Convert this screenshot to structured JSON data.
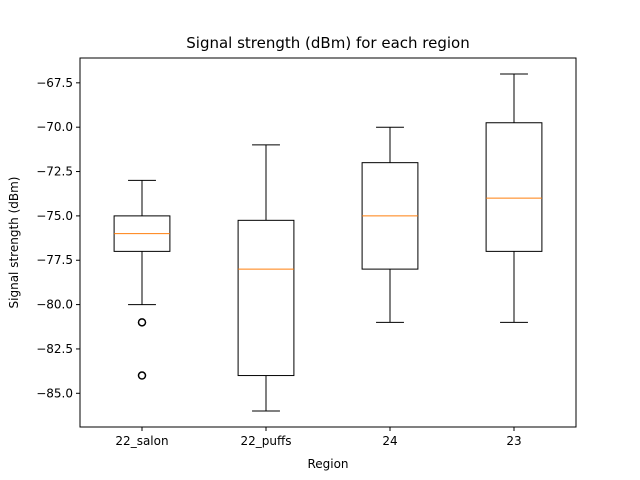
{
  "chart_data": {
    "type": "box",
    "title": "Signal strength (dBm) for each region",
    "xlabel": "Region",
    "ylabel": "Signal strength (dBm)",
    "categories": [
      "22_salon",
      "22_puffs",
      "24",
      "23"
    ],
    "boxes": [
      {
        "category": "22_salon",
        "whisker_low": -80.0,
        "q1": -77.0,
        "median": -76.0,
        "q3": -75.0,
        "whisker_high": -73.0,
        "outliers": [
          -81.0,
          -84.0
        ]
      },
      {
        "category": "22_puffs",
        "whisker_low": -86.0,
        "q1": -84.0,
        "median": -78.0,
        "q3": -75.25,
        "whisker_high": -71.0,
        "outliers": []
      },
      {
        "category": "24",
        "whisker_low": -81.0,
        "q1": -78.0,
        "median": -75.0,
        "q3": -72.0,
        "whisker_high": -70.0,
        "outliers": []
      },
      {
        "category": "23",
        "whisker_low": -81.0,
        "q1": -77.0,
        "median": -74.0,
        "q3": -69.75,
        "whisker_high": -67.0,
        "outliers": []
      }
    ],
    "ylim": [
      -86.9,
      -66.1
    ],
    "yticks": [
      -85.0,
      -82.5,
      -80.0,
      -77.5,
      -75.0,
      -72.5,
      -70.0,
      -67.5
    ],
    "ytick_labels": [
      "−85.0",
      "−82.5",
      "−80.0",
      "−77.5",
      "−75.0",
      "−72.5",
      "−70.0",
      "−67.5"
    ],
    "grid": false,
    "colors": {
      "box": "#000000",
      "median": "#ff7f0e",
      "background": "#ffffff"
    }
  }
}
